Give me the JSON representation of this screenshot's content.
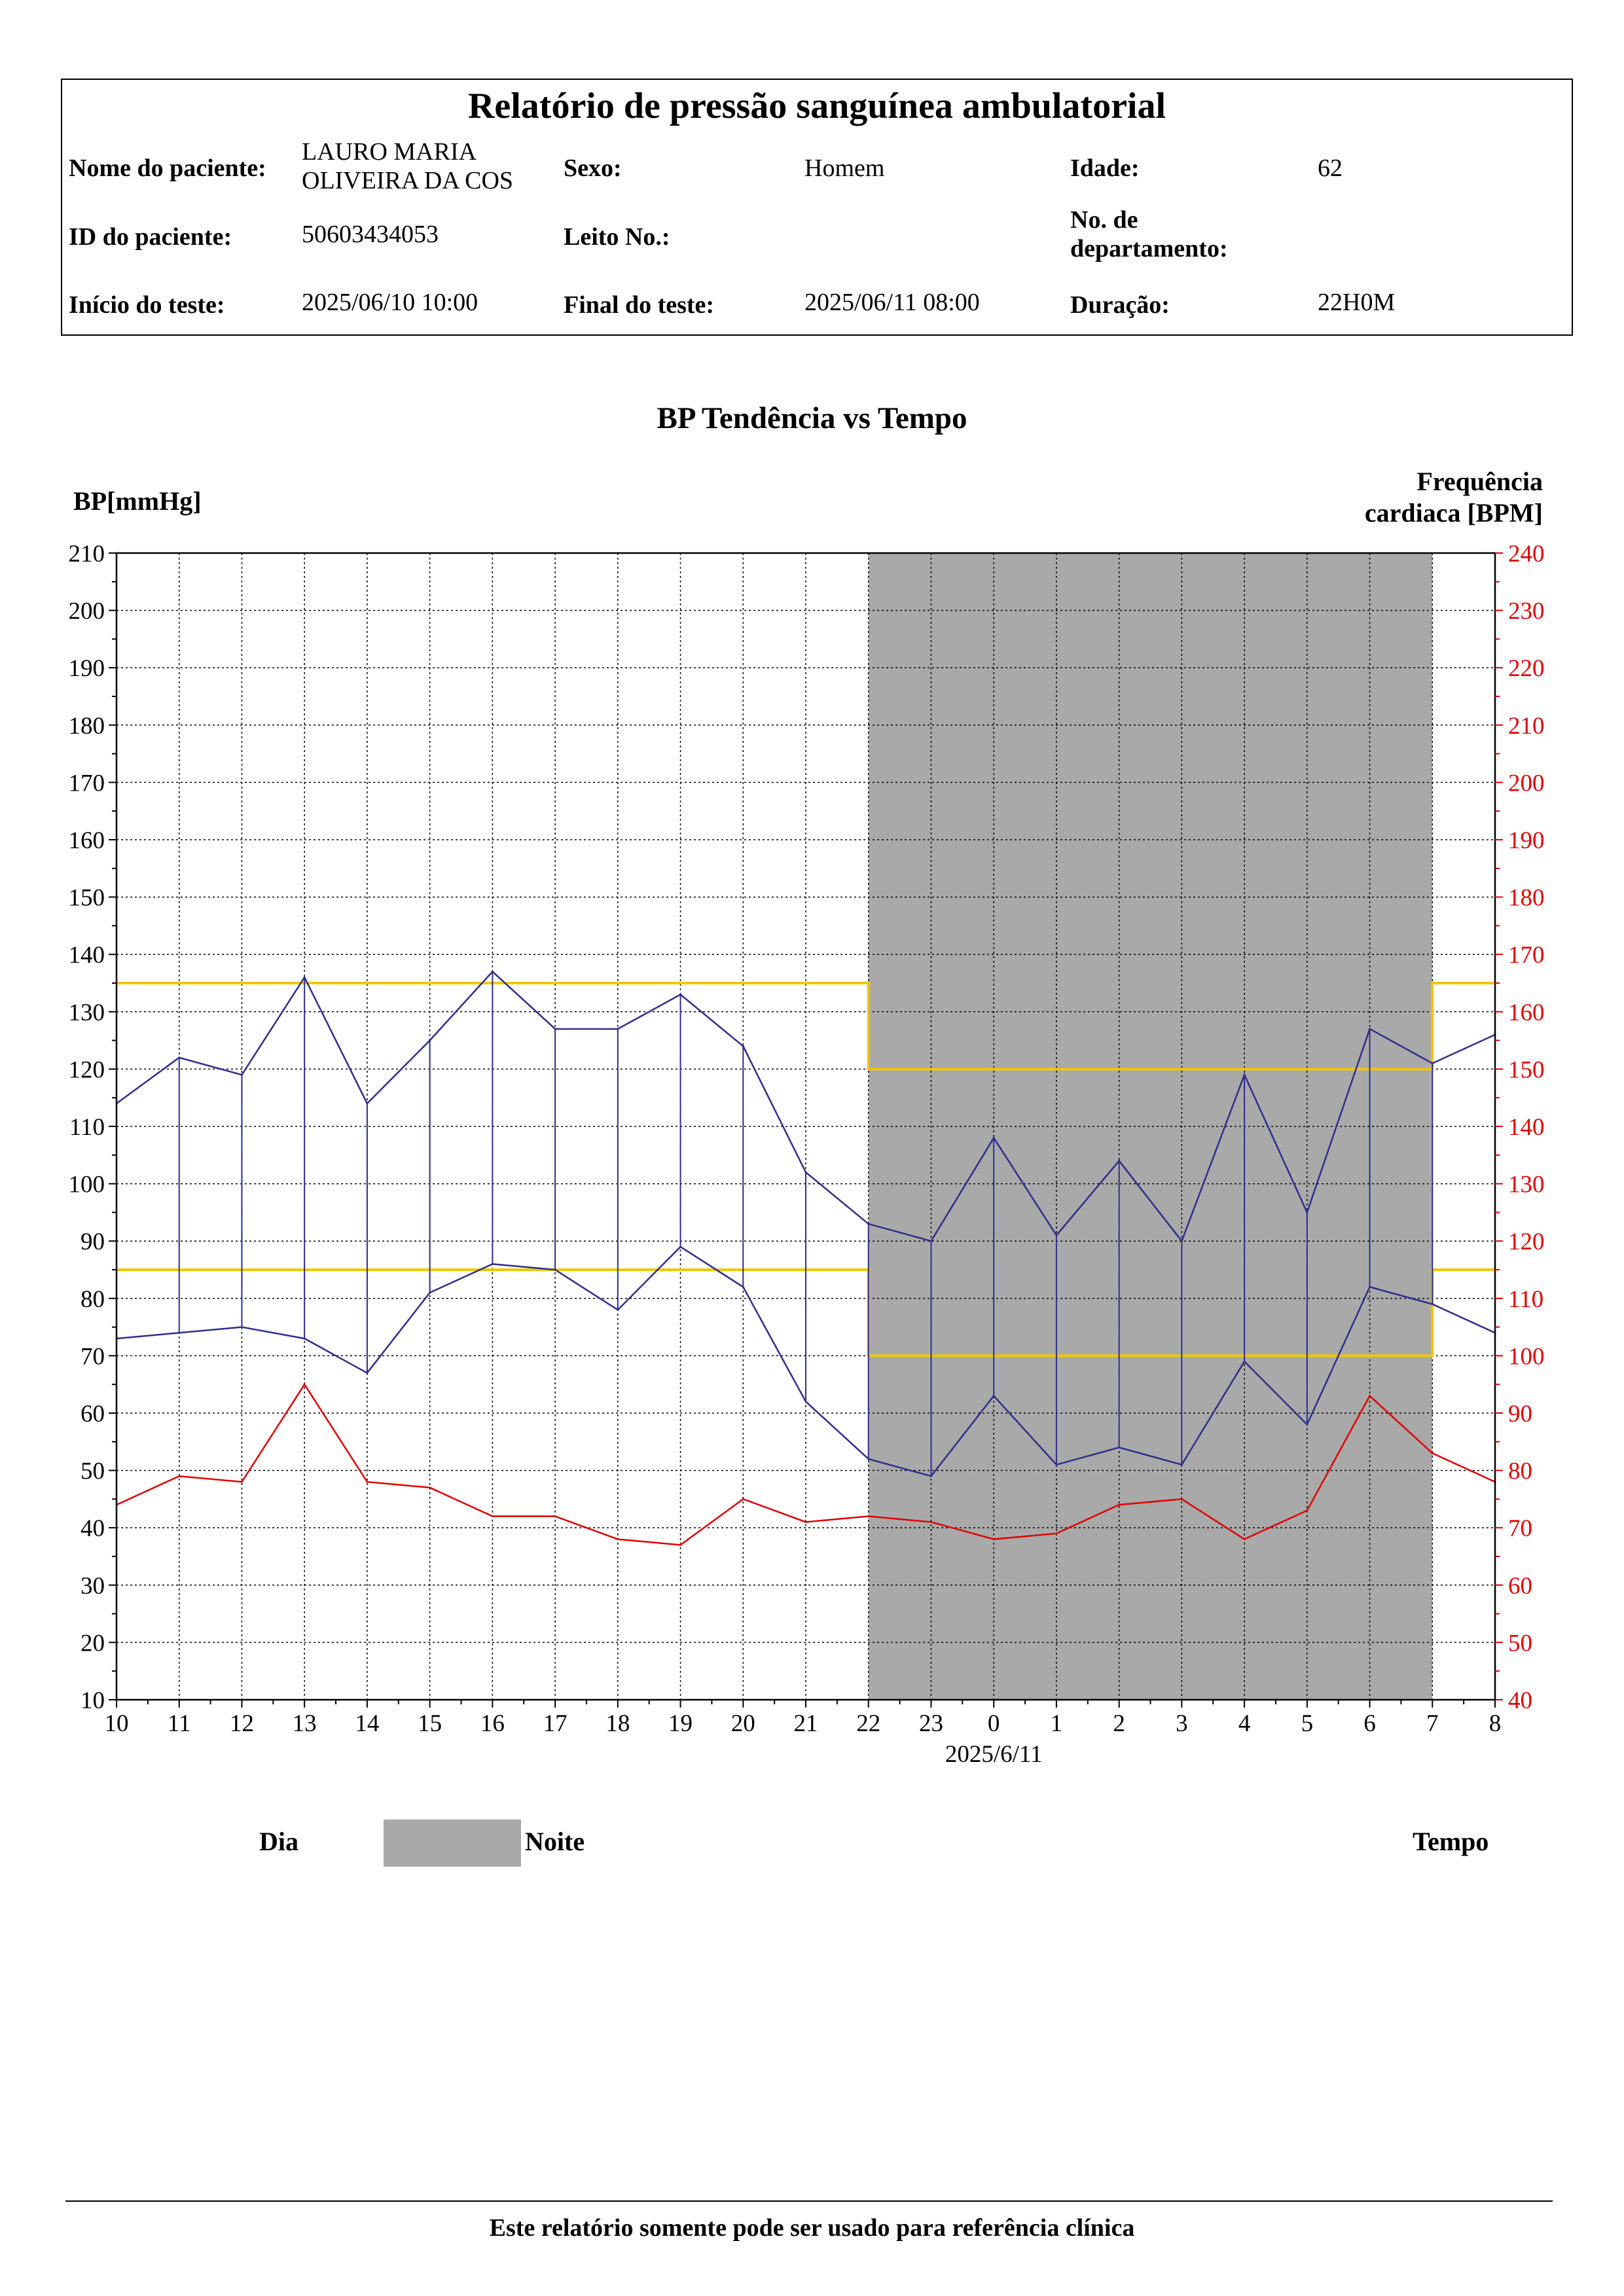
{
  "report": {
    "title": "Relatório de pressão sanguínea ambulatorial",
    "fields": {
      "patient_name_label": "Nome do paciente:",
      "patient_name": "LAURO MARIA\nOLIVEIRA  DA COS",
      "sex_label": "Sexo:",
      "sex": "Homem",
      "age_label": "Idade:",
      "age": "62",
      "patient_id_label": "ID do paciente:",
      "patient_id": "50603434053",
      "bed_label": "Leito No.:",
      "bed": "",
      "department_label": "No. de\ndepartamento:",
      "department": "",
      "start_label": "Início do teste:",
      "start": "2025/06/10 10:00",
      "end_label": "Final do teste:",
      "end": "2025/06/11 08:00",
      "duration_label": "Duração:",
      "duration": "22H0M"
    }
  },
  "legend": {
    "day": "Dia",
    "night": "Noite",
    "time": "Tempo"
  },
  "footer": {
    "text": "Este relatório somente pode ser usado para referência clínica"
  },
  "chart_data": {
    "type": "line",
    "title": "BP Tendência vs Tempo",
    "ylabel": "BP[mmHg]",
    "y2label": "Frequência\ncardiaca [BPM]",
    "ylim": [
      10,
      210
    ],
    "y2lim": [
      40,
      240
    ],
    "x_ticks": [
      "10",
      "11",
      "12",
      "13",
      "14",
      "15",
      "16",
      "17",
      "18",
      "19",
      "20",
      "21",
      "22",
      "23",
      "0",
      "1",
      "2",
      "3",
      "4",
      "5",
      "6",
      "7",
      "8"
    ],
    "x_date_label": "2025/6/11",
    "night_period": {
      "start": "22",
      "end": "7"
    },
    "thresholds": {
      "systolic_day": 135,
      "systolic_night": 120,
      "diastolic_day": 85,
      "diastolic_night": 70
    },
    "measurement_x": [
      "10",
      "11",
      "12",
      "13",
      "14",
      "15",
      "16",
      "17",
      "18",
      "19",
      "20",
      "21",
      "22",
      "23",
      "0",
      "1",
      "2",
      "3",
      "4",
      "5",
      "6",
      "7",
      "8"
    ],
    "series": [
      {
        "key": "systolic",
        "axis": "left",
        "color": "#2e2e8c",
        "values": [
          114,
          122,
          119,
          136,
          114,
          125,
          137,
          127,
          127,
          133,
          124,
          102,
          93,
          90,
          108,
          91,
          104,
          90,
          119,
          95,
          127,
          121,
          126
        ]
      },
      {
        "key": "diastolic",
        "axis": "left",
        "color": "#2e2e8c",
        "values": [
          73,
          74,
          75,
          73,
          67,
          81,
          86,
          85,
          78,
          89,
          82,
          62,
          52,
          49,
          63,
          51,
          54,
          51,
          69,
          58,
          82,
          79,
          74
        ]
      },
      {
        "key": "heart_rate",
        "axis": "right",
        "color": "#e00000",
        "values": [
          74,
          79,
          78,
          95,
          78,
          77,
          72,
          72,
          68,
          67,
          75,
          71,
          72,
          71,
          68,
          69,
          74,
          75,
          68,
          73,
          93,
          83,
          78
        ]
      }
    ],
    "colors": {
      "bp": "#2e2e8c",
      "hr": "#e00000",
      "threshold": "#f2c600",
      "night": "#a9a9a9"
    }
  }
}
